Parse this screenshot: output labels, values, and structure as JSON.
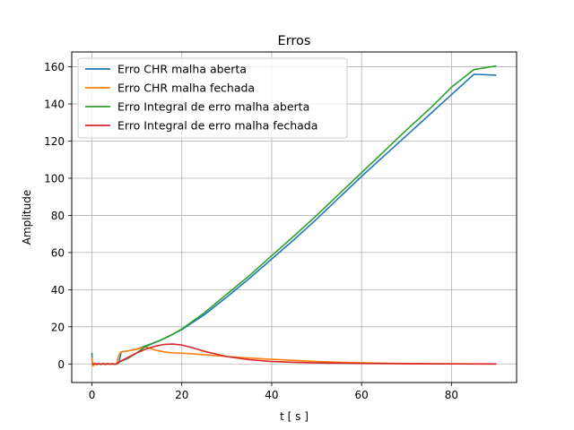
{
  "chart_data": {
    "type": "line",
    "title": "Erros",
    "xlabel": "t [ s ]",
    "ylabel": "Amplitude",
    "xlim": [
      -4.5,
      94.5
    ],
    "ylim": [
      -10,
      168
    ],
    "xticks": [
      0,
      20,
      40,
      60,
      80
    ],
    "yticks": [
      0,
      20,
      40,
      60,
      80,
      100,
      120,
      140,
      160
    ],
    "grid": true,
    "legend_position": "top-left",
    "series": [
      {
        "name": "Erro CHR malha aberta",
        "color": "#1f77b4",
        "x": [
          0,
          0.05,
          0.3,
          0.6,
          1.0,
          1.5,
          2.0,
          2.5,
          3.0,
          3.5,
          4.0,
          4.5,
          5.0,
          5.5,
          6.0,
          6.5,
          8,
          10,
          12,
          15,
          18,
          20,
          25,
          30,
          35,
          40,
          45,
          50,
          55,
          60,
          65,
          70,
          75,
          80,
          85,
          90
        ],
        "y": [
          6,
          1,
          -0.5,
          0.5,
          -0.3,
          0.4,
          -0.3,
          0.3,
          -0.3,
          0.3,
          -0.2,
          0.2,
          -0.2,
          0.2,
          0.5,
          6.5,
          7.0,
          8.0,
          9.8,
          12.5,
          16,
          18.5,
          26.5,
          36,
          46,
          56.5,
          67,
          78,
          89.5,
          101,
          112,
          123,
          134,
          145,
          156,
          155.5
        ]
      },
      {
        "name": "Erro CHR malha fechada",
        "color": "#ff7f0e",
        "x": [
          0,
          0.1,
          0.3,
          0.6,
          1.0,
          1.5,
          2.0,
          2.5,
          3.0,
          3.5,
          4.0,
          4.5,
          5.0,
          5.5,
          6.0,
          6.5,
          8,
          10,
          12,
          14,
          16,
          18,
          20,
          25,
          30,
          35,
          40,
          50,
          60,
          70,
          80,
          90
        ],
        "y": [
          3.5,
          0,
          -1,
          0.5,
          -0.5,
          0.3,
          -0.3,
          0.3,
          -0.3,
          0.2,
          -0.2,
          0.2,
          -0.2,
          0.1,
          5,
          6.5,
          7,
          8,
          9.2,
          7.5,
          6.5,
          6.0,
          5.8,
          5.0,
          4.0,
          3.2,
          2.5,
          1.3,
          0.6,
          0.2,
          0.05,
          0.0
        ]
      },
      {
        "name": "Erro Integral de erro malha aberta",
        "color": "#2ca02c",
        "x": [
          0,
          2,
          4,
          5.5,
          6,
          8,
          10,
          12,
          15,
          18,
          20,
          25,
          30,
          35,
          40,
          45,
          50,
          55,
          60,
          65,
          70,
          75,
          80,
          85,
          90
        ],
        "y": [
          0,
          0,
          0,
          0,
          1,
          3,
          6,
          9.5,
          12.5,
          16,
          18.8,
          27.5,
          37.5,
          47.5,
          58.3,
          69,
          80,
          91.5,
          103,
          114.5,
          126,
          137,
          149,
          158.5,
          160.5
        ]
      },
      {
        "name": "Erro Integral de erro malha fechada",
        "color": "#d62728",
        "x": [
          0,
          2,
          4,
          5.5,
          6,
          8,
          10,
          12,
          14,
          16,
          18,
          20,
          22,
          25,
          30,
          35,
          40,
          45,
          50,
          60,
          70,
          80,
          90
        ],
        "y": [
          0,
          0,
          0,
          0,
          1,
          3.5,
          6,
          8,
          9.5,
          10.5,
          10.7,
          10.2,
          9.0,
          6.8,
          4.0,
          2.3,
          1.3,
          0.9,
          0.6,
          0.3,
          0.1,
          0.05,
          0.0
        ]
      }
    ]
  }
}
